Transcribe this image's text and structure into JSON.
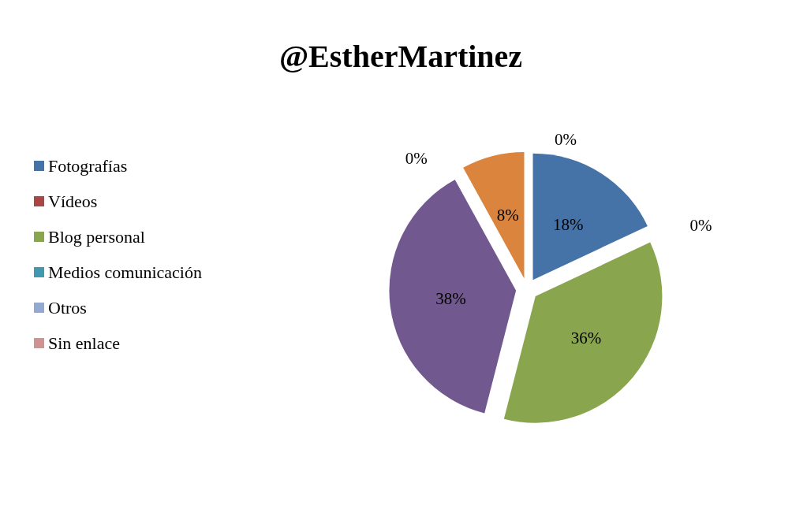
{
  "chart_data": {
    "type": "pie",
    "title": "@EstherMartinez",
    "categories": [
      "Fotografías",
      "Vídeos",
      "Blog personal",
      null,
      "Medios comunicación",
      null,
      "Otros",
      "Sin enlace"
    ],
    "values": [
      18,
      0,
      36,
      38,
      0,
      8,
      0,
      0
    ],
    "value_labels": [
      "18%",
      "0%",
      "36%",
      "38%",
      "0%",
      "8%",
      "0%",
      null
    ],
    "colors": [
      "#4572a7",
      "#aa4643",
      "#89a54e",
      "#71588f",
      "#4198af",
      "#db843d",
      "#93a9cf",
      "#d19392"
    ],
    "legend": "left"
  }
}
